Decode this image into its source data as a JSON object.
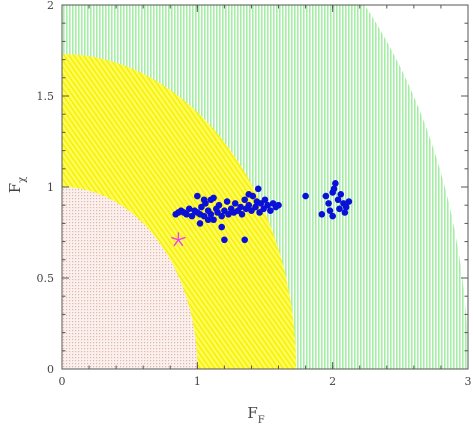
{
  "chart_data": {
    "type": "scatter",
    "title": "",
    "xlabel": "F",
    "xlabel_sub": "F",
    "ylabel": "F",
    "ylabel_sub": "χ",
    "xlim": [
      0,
      3
    ],
    "ylim": [
      0,
      2
    ],
    "xticks": [
      "0",
      "1",
      "2",
      "3"
    ],
    "yticks": [
      "0",
      "0.5",
      "1",
      "1.5",
      "2"
    ],
    "regions": [
      {
        "shape": "quarter-disc",
        "radius": 3.0,
        "color": "#a6eea6",
        "pattern": "vertical-dots"
      },
      {
        "shape": "quarter-disc",
        "radius": 1.73,
        "color": "#ffff3a",
        "pattern": "slanted-lines"
      },
      {
        "shape": "quarter-disc",
        "radius": 1.0,
        "color": "#f5d5c8",
        "pattern": "dots"
      }
    ],
    "colors": {
      "points": "#0a10d8",
      "marker": "#f040f0",
      "axes": "#555555"
    },
    "series": [
      {
        "marker": "circle",
        "points": [
          [
            0.84,
            0.85
          ],
          [
            0.86,
            0.86
          ],
          [
            0.88,
            0.87
          ],
          [
            0.9,
            0.86
          ],
          [
            0.92,
            0.85
          ],
          [
            0.94,
            0.88
          ],
          [
            0.96,
            0.84
          ],
          [
            0.98,
            0.87
          ],
          [
            1.0,
            0.86
          ],
          [
            1.02,
            0.85
          ],
          [
            1.03,
            0.89
          ],
          [
            1.05,
            0.84
          ],
          [
            1.06,
            0.91
          ],
          [
            1.08,
            0.87
          ],
          [
            1.1,
            0.85
          ],
          [
            1.1,
            0.93
          ],
          [
            1.12,
            0.82
          ],
          [
            1.14,
            0.88
          ],
          [
            1.15,
            0.86
          ],
          [
            1.16,
            0.9
          ],
          [
            1.18,
            0.84
          ],
          [
            1.2,
            0.87
          ],
          [
            1.22,
            0.92
          ],
          [
            1.23,
            0.85
          ],
          [
            1.25,
            0.88
          ],
          [
            1.27,
            0.86
          ],
          [
            1.28,
            0.91
          ],
          [
            1.3,
            0.87
          ],
          [
            1.32,
            0.89
          ],
          [
            1.33,
            0.85
          ],
          [
            1.35,
            0.93
          ],
          [
            1.36,
            0.88
          ],
          [
            1.38,
            0.9
          ],
          [
            1.4,
            0.87
          ],
          [
            1.41,
            0.95
          ],
          [
            1.43,
            0.89
          ],
          [
            1.44,
            0.92
          ],
          [
            1.46,
            0.86
          ],
          [
            1.47,
            0.91
          ],
          [
            1.49,
            0.88
          ],
          [
            1.5,
            0.93
          ],
          [
            1.52,
            0.9
          ],
          [
            1.54,
            0.87
          ],
          [
            1.56,
            0.91
          ],
          [
            1.58,
            0.89
          ],
          [
            1.6,
            0.9
          ],
          [
            1.45,
            0.99
          ],
          [
            1.38,
            0.96
          ],
          [
            1.0,
            0.95
          ],
          [
            1.05,
            0.93
          ],
          [
            1.12,
            0.94
          ],
          [
            1.02,
            0.8
          ],
          [
            1.08,
            0.82
          ],
          [
            1.18,
            0.78
          ],
          [
            1.2,
            0.71
          ],
          [
            1.35,
            0.71
          ],
          [
            1.95,
            0.95
          ],
          [
            1.98,
            0.87
          ],
          [
            1.97,
            0.91
          ],
          [
            1.92,
            0.85
          ],
          [
            2.0,
            0.97
          ],
          [
            2.02,
            1.02
          ],
          [
            2.04,
            0.93
          ],
          [
            2.05,
            0.88
          ],
          [
            2.08,
            0.91
          ],
          [
            2.1,
            0.89
          ],
          [
            2.12,
            0.92
          ],
          [
            2.0,
            0.84
          ],
          [
            2.06,
            0.96
          ],
          [
            1.8,
            0.95
          ],
          [
            2.01,
            0.99
          ],
          [
            2.09,
            0.86
          ]
        ]
      },
      {
        "marker": "star",
        "points": [
          [
            0.86,
            0.71
          ]
        ]
      }
    ],
    "grid": false,
    "legend": "none"
  }
}
